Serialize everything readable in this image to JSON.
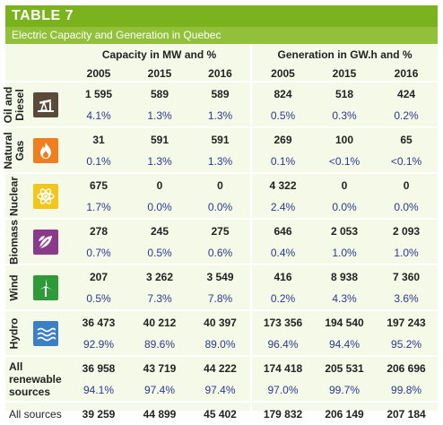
{
  "title": "TABLE 7",
  "subtitle": "Electric Capacity and Generation in Quebec",
  "capacity_header": "Capacity in MW and %",
  "generation_header": "Generation in GW.h and %",
  "years": [
    "2005",
    "2015",
    "2016"
  ],
  "rows": [
    {
      "label": "Oil and Diesel",
      "icon": "oil-pump-icon",
      "color": "#5a4a3a",
      "cap": [
        "1 595",
        "589",
        "589"
      ],
      "cap_pct": [
        "4.1%",
        "1.3%",
        "1.3%"
      ],
      "gen": [
        "824",
        "518",
        "424"
      ],
      "gen_pct": [
        "0.5%",
        "0.3%",
        "0.2%"
      ]
    },
    {
      "label": "Natural Gas",
      "icon": "flame-icon",
      "color": "#f07d1e",
      "cap": [
        "31",
        "591",
        "591"
      ],
      "cap_pct": [
        "0.1%",
        "1.3%",
        "1.3%"
      ],
      "gen": [
        "269",
        "100",
        "65"
      ],
      "gen_pct": [
        "0.1%",
        "<0.1%",
        "<0.1%"
      ]
    },
    {
      "label": "Nuclear",
      "icon": "atom-icon",
      "color": "#f3c61b",
      "cap": [
        "675",
        "0",
        "0"
      ],
      "cap_pct": [
        "1.7%",
        "0.0%",
        "0.0%"
      ],
      "gen": [
        "4 322",
        "0",
        "0"
      ],
      "gen_pct": [
        "2.4%",
        "0.0%",
        "0.0%"
      ]
    },
    {
      "label": "Biomass",
      "icon": "leaf-icon",
      "color": "#8b3a8b",
      "cap": [
        "278",
        "245",
        "275"
      ],
      "cap_pct": [
        "0.7%",
        "0.5%",
        "0.6%"
      ],
      "gen": [
        "646",
        "2 053",
        "2 093"
      ],
      "gen_pct": [
        "0.4%",
        "1.0%",
        "1.0%"
      ]
    },
    {
      "label": "Wind",
      "icon": "wind-turbine-icon",
      "color": "#2e9a3a",
      "cap": [
        "207",
        "3 262",
        "3 549"
      ],
      "cap_pct": [
        "0.5%",
        "7.3%",
        "7.8%"
      ],
      "gen": [
        "416",
        "8 938",
        "7 360"
      ],
      "gen_pct": [
        "0.2%",
        "4.3%",
        "3.6%"
      ]
    },
    {
      "label": "Hydro",
      "icon": "water-waves-icon",
      "color": "#3b7fc4",
      "cap": [
        "36 473",
        "40 212",
        "40 397"
      ],
      "cap_pct": [
        "92.9%",
        "89.6%",
        "89.0%"
      ],
      "gen": [
        "173 356",
        "194 540",
        "197 243"
      ],
      "gen_pct": [
        "96.4%",
        "94.4%",
        "95.2%"
      ]
    }
  ],
  "renewable": {
    "label_1": "All renewable",
    "label_2": "sources",
    "cap": [
      "36 958",
      "43 719",
      "44 222"
    ],
    "cap_pct": [
      "94.1%",
      "97.4%",
      "97.4%"
    ],
    "gen": [
      "174 418",
      "205 531",
      "206 696"
    ],
    "gen_pct": [
      "97.0%",
      "99.7%",
      "99.8%"
    ]
  },
  "all": {
    "label": "All sources",
    "cap": [
      "39 259",
      "44 899",
      "45 402"
    ],
    "gen": [
      "179 832",
      "206 149",
      "207 184"
    ]
  }
}
